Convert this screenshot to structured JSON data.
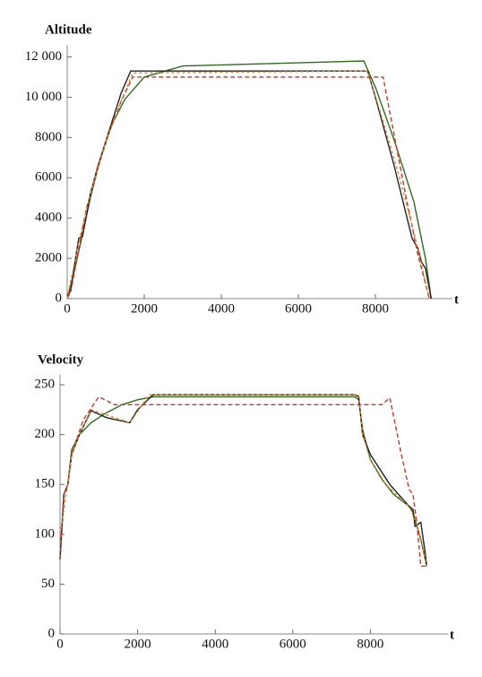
{
  "chart_data": [
    {
      "type": "line",
      "y_label": "Altitude",
      "x_label": "t",
      "xlim": [
        0,
        10000
      ],
      "xticks": [
        0,
        2000,
        4000,
        6000,
        8000
      ],
      "ylim": [
        0,
        12600
      ],
      "yticks": [
        0,
        2000,
        4000,
        6000,
        8000,
        {
          "value": 10000,
          "label": "10 000"
        },
        {
          "value": 12000,
          "label": "12 000"
        }
      ],
      "series": [
        {
          "color": "#2e6b1f",
          "dash": "none",
          "x": [
            0,
            200,
            400,
            600,
            800,
            1000,
            1200,
            1500,
            2000,
            3000,
            7700,
            8000,
            8500,
            9000,
            9300,
            9450
          ],
          "values": [
            0,
            1500,
            3200,
            5000,
            6500,
            7800,
            8800,
            9900,
            11000,
            11550,
            11800,
            10500,
            7800,
            4800,
            2000,
            0
          ]
        },
        {
          "color": "#222222",
          "dash": "none",
          "x": [
            0,
            100,
            200,
            300,
            400,
            600,
            800,
            1000,
            1200,
            1400,
            1650,
            7800,
            8000,
            8500,
            8950,
            9100,
            9200,
            9300,
            9450
          ],
          "values": [
            0,
            500,
            1800,
            3000,
            3100,
            5200,
            6600,
            7800,
            9000,
            10200,
            11300,
            11300,
            10000,
            6500,
            3000,
            2500,
            1800,
            1500,
            0
          ]
        },
        {
          "color": "#c0392b",
          "dash": "5,3",
          "x": [
            0,
            100,
            300,
            500,
            800,
            1100,
            1400,
            1700,
            8200,
            8500,
            8800,
            9100,
            9400
          ],
          "values": [
            0,
            400,
            2500,
            4500,
            6500,
            8300,
            9800,
            11000,
            11000,
            8000,
            5000,
            2200,
            0
          ]
        },
        {
          "color": "#d9822b",
          "dash": "3,3",
          "x": [
            0,
            300,
            600,
            1000,
            1400,
            1700,
            7800,
            8200,
            8600,
            9000,
            9400
          ],
          "values": [
            0,
            2800,
            5200,
            7800,
            9800,
            11200,
            11300,
            8800,
            6200,
            3300,
            0
          ]
        }
      ]
    },
    {
      "type": "line",
      "y_label": "Velocity",
      "x_label": "t",
      "xlim": [
        0,
        10000
      ],
      "xticks": [
        0,
        2000,
        4000,
        6000,
        8000
      ],
      "ylim": [
        0,
        260
      ],
      "yticks": [
        0,
        50,
        100,
        150,
        200,
        250
      ],
      "series": [
        {
          "color": "#2e6b1f",
          "dash": "none",
          "x": [
            0,
            100,
            200,
            300,
            500,
            800,
            1200,
            1600,
            2000,
            2400,
            7600,
            7700,
            7800,
            8000,
            8300,
            8600,
            9000,
            9100,
            9200,
            9300,
            9450
          ],
          "values": [
            75,
            140,
            150,
            185,
            200,
            212,
            222,
            230,
            235,
            238,
            238,
            235,
            205,
            175,
            155,
            140,
            128,
            122,
            108,
            95,
            68
          ]
        },
        {
          "color": "#222222",
          "dash": "none",
          "x": [
            0,
            100,
            200,
            300,
            500,
            800,
            1200,
            1800,
            2000,
            2400,
            7600,
            7700,
            7800,
            8000,
            8500,
            9000,
            9100,
            9150,
            9300,
            9400,
            9450
          ],
          "values": [
            75,
            140,
            150,
            180,
            200,
            224,
            217,
            212,
            225,
            240,
            240,
            238,
            200,
            180,
            150,
            128,
            125,
            108,
            112,
            85,
            70
          ]
        },
        {
          "color": "#c0392b",
          "dash": "5,3",
          "x": [
            0,
            100,
            200,
            300,
            600,
            1000,
            1400,
            8000,
            8300,
            8500,
            8800,
            9000,
            9100,
            9200,
            9300,
            9450
          ],
          "values": [
            75,
            140,
            150,
            180,
            215,
            238,
            230,
            230,
            230,
            237,
            180,
            145,
            140,
            110,
            68,
            68
          ]
        },
        {
          "color": "#d9822b",
          "dash": "3,3",
          "x": [
            0,
            200,
            300,
            500,
            800,
            1800,
            2300,
            7700,
            7800,
            8000,
            8400,
            8800,
            9000,
            9200,
            9450
          ],
          "values": [
            100,
            150,
            180,
            200,
            225,
            212,
            240,
            240,
            200,
            175,
            150,
            135,
            128,
            110,
            70
          ]
        }
      ]
    }
  ]
}
